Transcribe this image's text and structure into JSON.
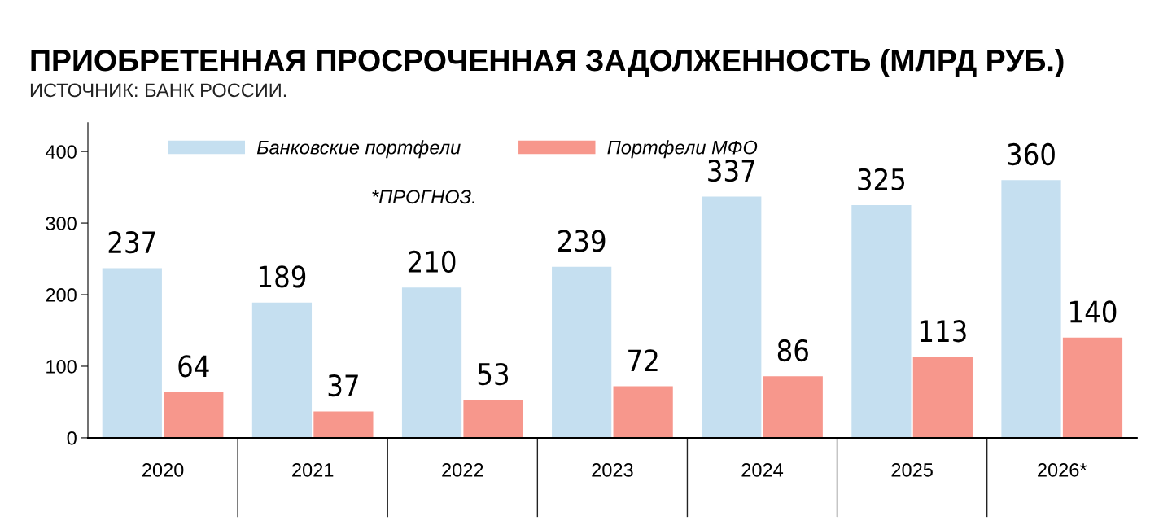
{
  "chart_data": {
    "type": "bar",
    "title": "ПРИОБРЕТЕННАЯ ПРОСРОЧЕННАЯ ЗАДОЛЖЕННОСТЬ (МЛРД РУБ.)",
    "subtitle": "ИСТОЧНИК: БАНК РОССИИ.",
    "categories": [
      "2020",
      "2021",
      "2022",
      "2023",
      "2024",
      "2025",
      "2026*"
    ],
    "series": [
      {
        "name": "Банковские портфели",
        "color": "#c5dff0",
        "values": [
          237,
          189,
          210,
          239,
          337,
          325,
          360
        ]
      },
      {
        "name": "Портфели МФО",
        "color": "#f7978c",
        "values": [
          64,
          37,
          53,
          72,
          86,
          113,
          140
        ]
      }
    ],
    "ylim": [
      0,
      440
    ],
    "yticks": [
      0,
      100,
      200,
      300,
      400
    ],
    "data_labels": true,
    "legend": "top left",
    "grid": false,
    "annotations": [
      "*ПРОГНОЗ."
    ]
  }
}
